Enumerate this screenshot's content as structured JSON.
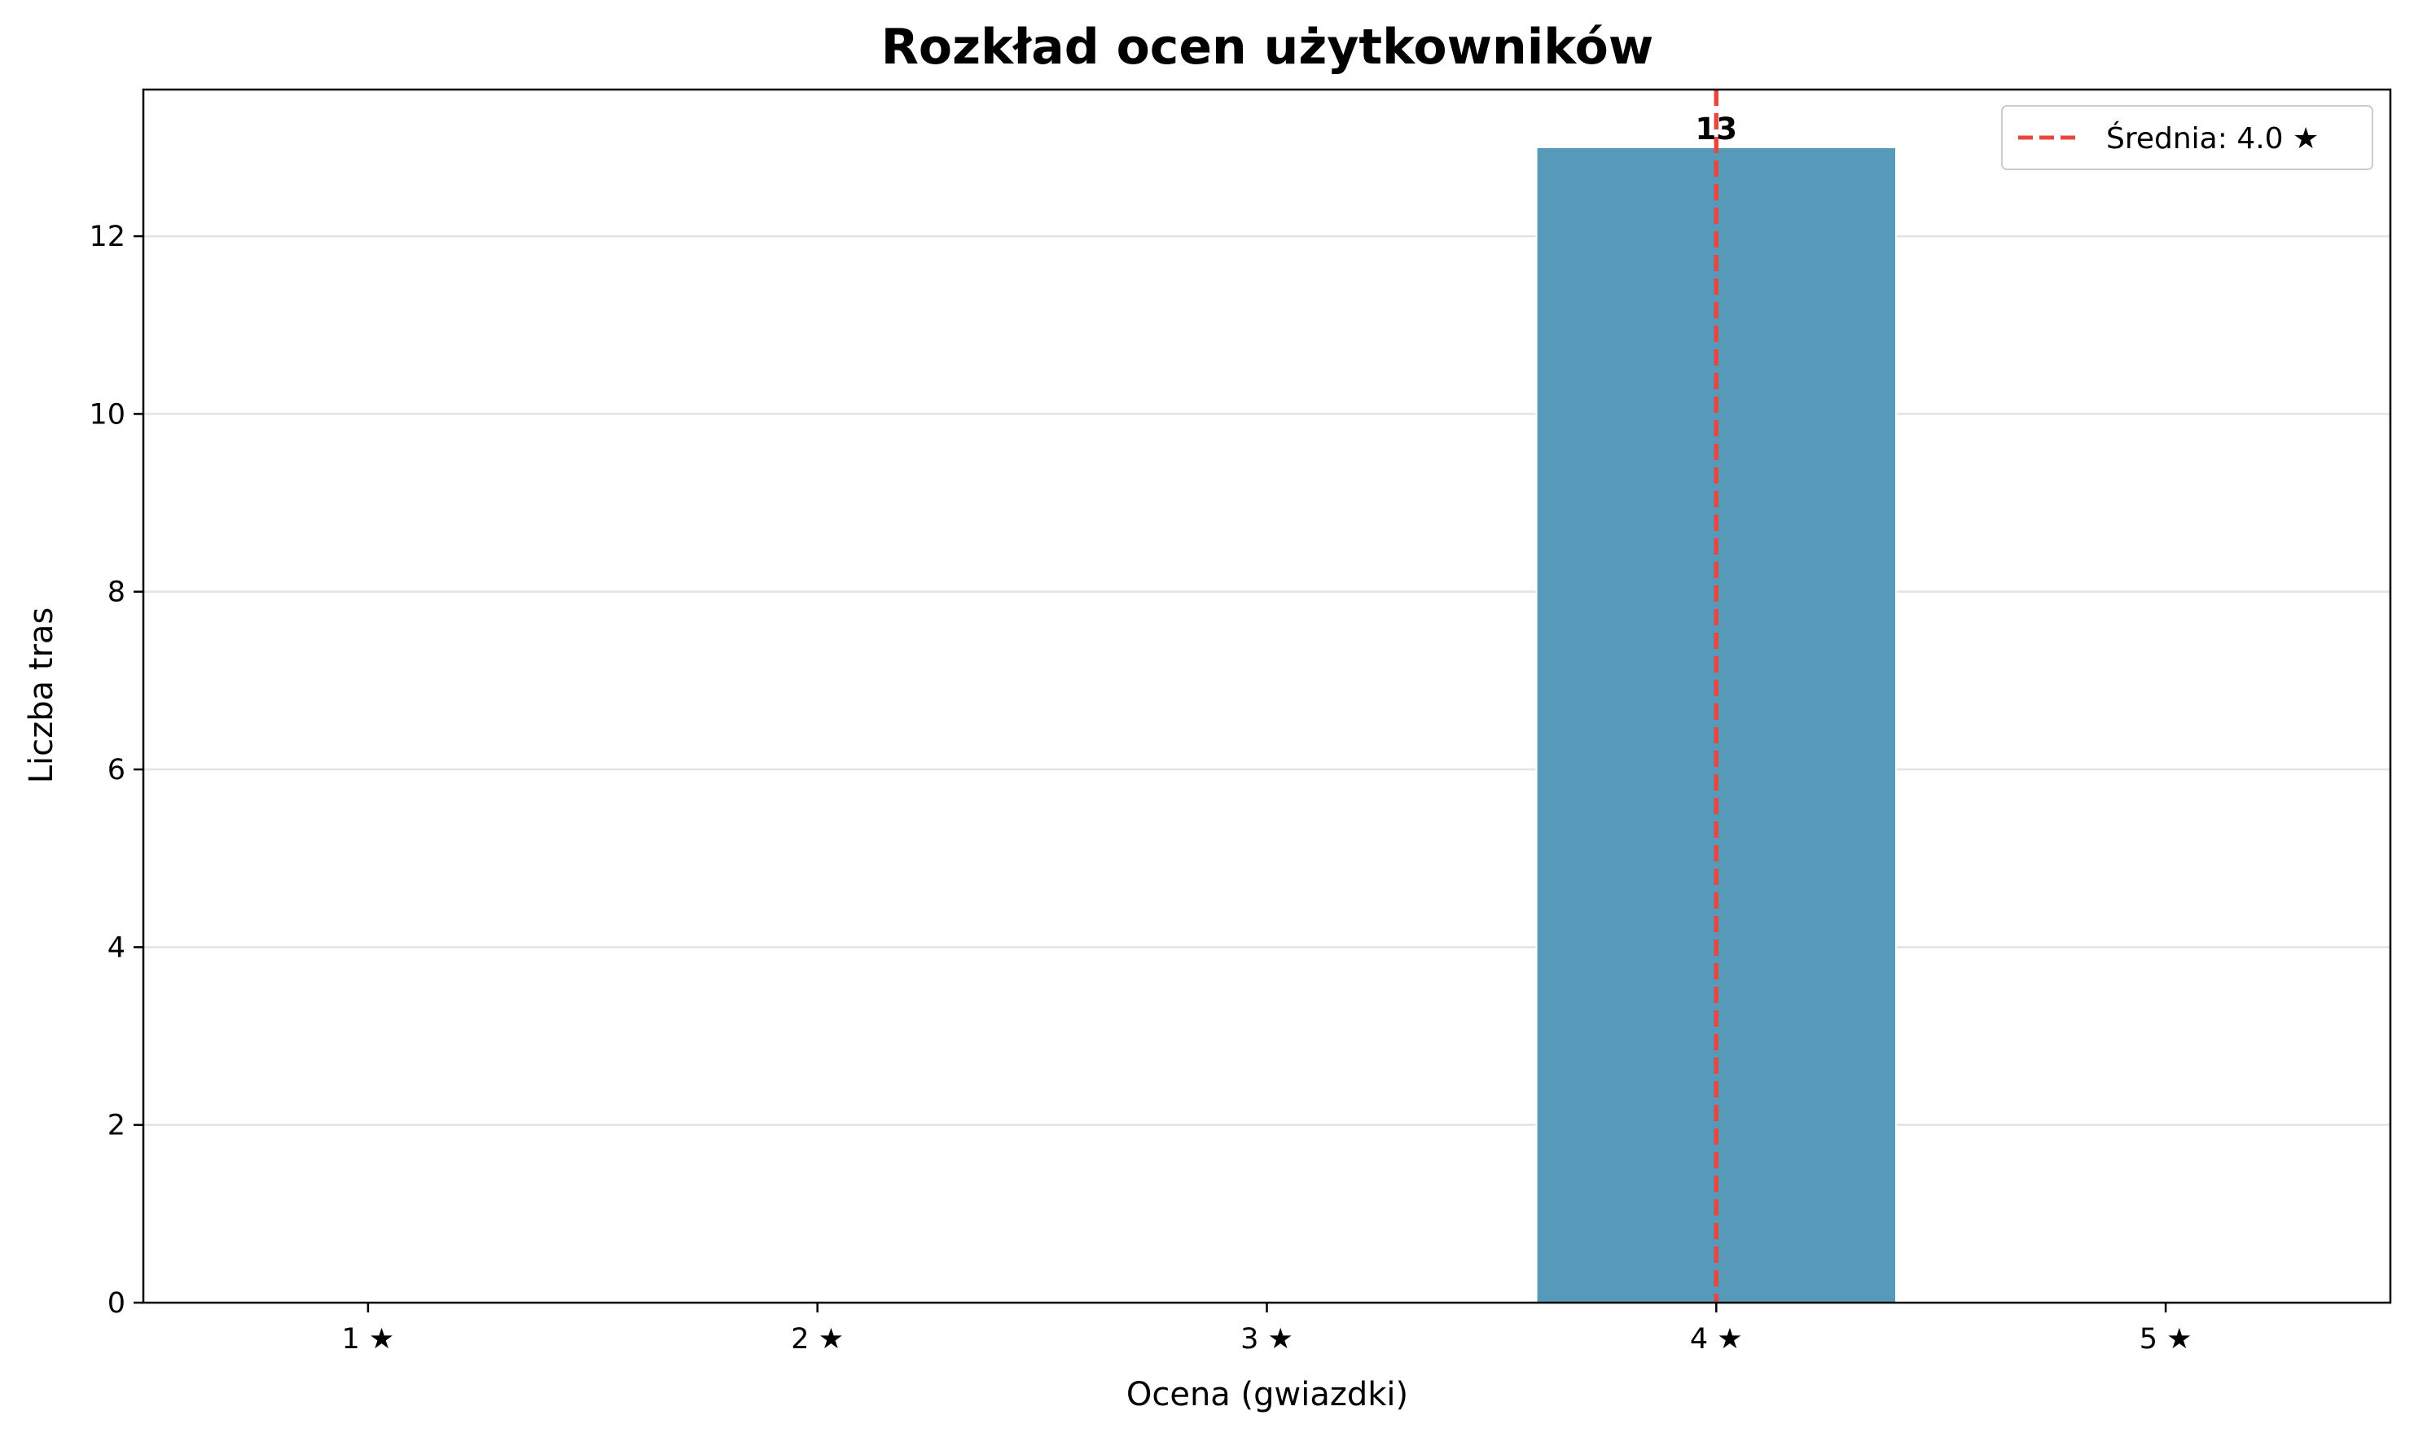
{
  "chart_data": {
    "type": "bar",
    "title": "Rozkład ocen użytkowników",
    "xlabel": "Ocena (gwiazdki)",
    "ylabel": "Liczba tras",
    "categories": [
      "1 ★",
      "2 ★",
      "3 ★",
      "4 ★",
      "5 ★"
    ],
    "values": [
      0,
      0,
      0,
      13,
      0
    ],
    "ylim": [
      0,
      13.65
    ],
    "yticks": [
      0,
      2,
      4,
      6,
      8,
      10,
      12
    ],
    "grid": "horizontal",
    "bar_color": "#5799b9",
    "reference_line": {
      "type": "vertical-dashed",
      "x_rating": 4.0,
      "color": "#e8473f",
      "label": "Średnia: 4.0 ★"
    },
    "legend": {
      "placement": "top-right",
      "entries": [
        "Średnia: 4.0 ★"
      ]
    },
    "data_labels": [
      {
        "category": "4 ★",
        "text": "13"
      }
    ]
  }
}
